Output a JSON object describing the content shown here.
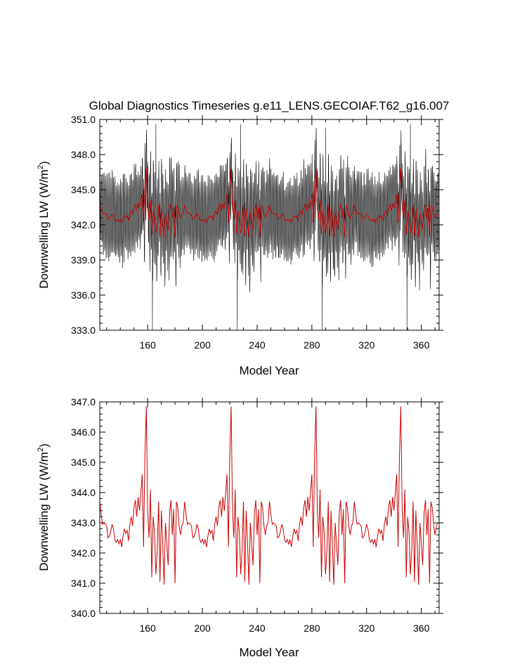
{
  "figure": {
    "title": "Global Diagnostics Timeseries g.e11_LENS.GECOIAF.T62_g16.007"
  },
  "chart_data": [
    {
      "type": "line",
      "title": "Global Diagnostics Timeseries g.e11_LENS.GECOIAF.T62_g16.007",
      "xlabel": "Model Year",
      "ylabel_main": "Downwelling LW (W/m",
      "ylabel_sup": "2",
      "ylabel_close": ")",
      "xlim": [
        125,
        373
      ],
      "ylim": [
        333.0,
        351.0
      ],
      "xticks": [
        160,
        200,
        240,
        280,
        320,
        360
      ],
      "yticks": [
        "333.0",
        "336.0",
        "339.0",
        "342.0",
        "345.0",
        "348.0",
        "351.0"
      ],
      "series": [
        {
          "color": "#000000",
          "description_kind": "monthly",
          "x_start": 125,
          "x_end": 373,
          "min_spikes": [
            {
              "x": 163.5,
              "y": 333.0
            },
            {
              "x": 225.5,
              "y": 333.0
            },
            {
              "x": 287.5,
              "y": 333.0
            },
            {
              "x": 349.5,
              "y": 333.0
            }
          ],
          "max_spikes": [
            {
              "x": 166,
              "y": 350.6
            },
            {
              "x": 228,
              "y": 350.6
            },
            {
              "x": 290,
              "y": 350.3
            },
            {
              "x": 352,
              "y": 350.6
            }
          ]
        },
        {
          "color": "#cc0000",
          "description_kind": "annual"
        }
      ]
    },
    {
      "type": "line",
      "xlabel": "Model Year",
      "ylabel_main": "Downwelling LW (W/m",
      "ylabel_sup": "2",
      "ylabel_close": ")",
      "xlim": [
        125,
        373
      ],
      "ylim": [
        340.0,
        347.0
      ],
      "xticks": [
        160,
        200,
        240,
        280,
        320,
        360
      ],
      "yticks": [
        "340.0",
        "341.0",
        "342.0",
        "343.0",
        "344.0",
        "345.0",
        "346.0",
        "347.0"
      ],
      "series": [
        {
          "color": "#cc0000",
          "x_start": 125,
          "x_end": 372,
          "period": 62,
          "cycle_x": [
            125,
            126,
            127,
            128,
            129,
            130,
            131,
            132,
            133,
            134,
            135,
            136,
            137,
            138,
            139,
            140,
            141,
            142,
            143,
            144,
            145,
            146,
            147,
            148,
            149,
            150,
            151,
            152,
            153,
            154,
            155,
            156,
            157,
            158,
            159,
            160,
            161,
            162,
            163,
            164,
            165,
            166,
            167,
            168,
            169,
            170,
            171,
            172,
            173,
            174,
            175,
            176,
            177,
            178,
            179,
            180,
            181,
            182,
            183,
            184,
            185,
            186
          ],
          "cycle_y": [
            343.7,
            343.3,
            342.95,
            343.0,
            342.95,
            342.9,
            342.5,
            342.55,
            342.7,
            342.95,
            342.8,
            342.45,
            342.35,
            342.45,
            342.3,
            342.45,
            342.2,
            342.55,
            342.8,
            342.65,
            342.75,
            342.4,
            342.95,
            343.2,
            342.9,
            343.5,
            343.75,
            343.2,
            343.85,
            343.4,
            344.0,
            344.6,
            342.2,
            345.2,
            346.85,
            343.4,
            342.5,
            344.1,
            341.2,
            343.2,
            342.7,
            341.3,
            342.1,
            343.7,
            341.05,
            343.4,
            342.3,
            340.95,
            343.0,
            342.3,
            341.6,
            343.3,
            343.75,
            342.6,
            343.45,
            341.0,
            343.7,
            343.5,
            342.9,
            342.6,
            342.9,
            343.0
          ]
        }
      ]
    }
  ]
}
